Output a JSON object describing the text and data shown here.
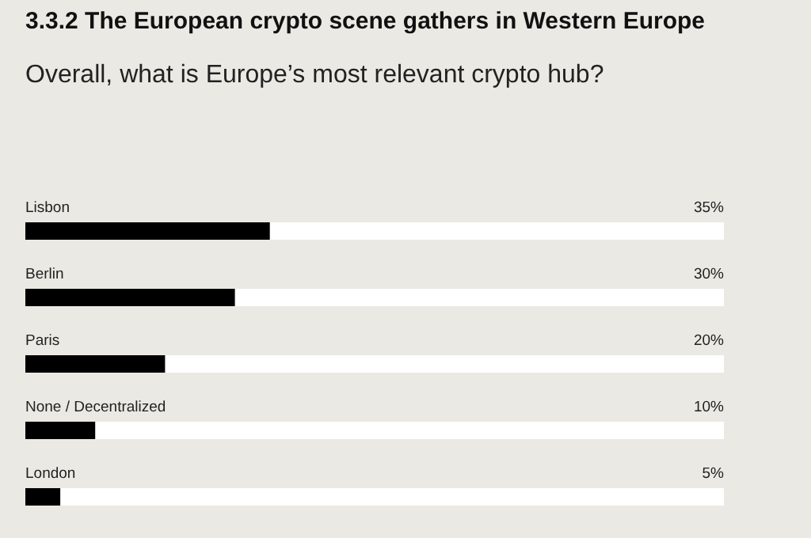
{
  "chart_data": {
    "type": "bar",
    "orientation": "horizontal",
    "title": "3.3.2 The European crypto scene gathers in Western Europe",
    "subtitle": "Overall, what is Europe’s most relevant crypto hub?",
    "categories": [
      "Lisbon",
      "Berlin",
      "Paris",
      "None / Decentralized",
      "London"
    ],
    "values": [
      35,
      30,
      20,
      10,
      5
    ],
    "value_labels": [
      "35%",
      "30%",
      "20%",
      "10%",
      "5%"
    ],
    "color": "#000000",
    "xlim": [
      0,
      100
    ]
  }
}
